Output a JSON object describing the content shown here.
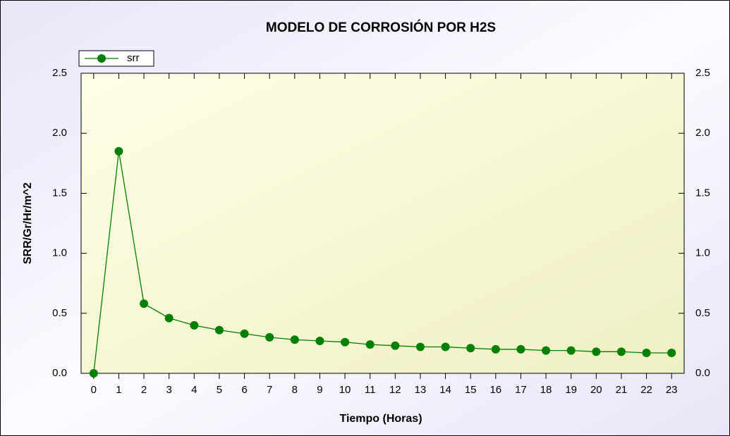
{
  "chart_data": {
    "type": "line",
    "title": "MODELO DE CORROSIÓN POR H2S",
    "xlabel": "Tiempo (Horas)",
    "ylabel": "SRR/Gr/Hr/m^2",
    "x": [
      0,
      1,
      2,
      3,
      4,
      5,
      6,
      7,
      8,
      9,
      10,
      11,
      12,
      13,
      14,
      15,
      16,
      17,
      18,
      19,
      20,
      21,
      22,
      23
    ],
    "series": [
      {
        "name": "srr",
        "color": "#008000",
        "values": [
          0,
          1.85,
          0.58,
          0.46,
          0.4,
          0.36,
          0.33,
          0.3,
          0.28,
          0.27,
          0.26,
          0.24,
          0.23,
          0.22,
          0.22,
          0.21,
          0.2,
          0.2,
          0.19,
          0.19,
          0.18,
          0.18,
          0.17,
          0.17
        ]
      }
    ],
    "xlim": [
      -0.5,
      23.5
    ],
    "xticks": [
      0,
      1,
      2,
      3,
      4,
      5,
      6,
      7,
      8,
      9,
      10,
      11,
      12,
      13,
      14,
      15,
      16,
      17,
      18,
      19,
      20,
      21,
      22,
      23
    ],
    "ylim": [
      0,
      2.5
    ],
    "yticks": [
      {
        "value": 0,
        "label": "0.0"
      },
      0.5,
      {
        "value": 1,
        "label": "1.0"
      },
      1.5,
      {
        "value": 2,
        "label": "2.0"
      },
      2.5
    ],
    "y2lim": [
      0,
      2.5
    ],
    "y2ticks": [
      {
        "value": 0,
        "label": "0.0"
      },
      0.5,
      {
        "value": 1,
        "label": "1.0"
      },
      1.5,
      {
        "value": 2,
        "label": "2.0"
      },
      2.5
    ],
    "legend": "top-left"
  }
}
